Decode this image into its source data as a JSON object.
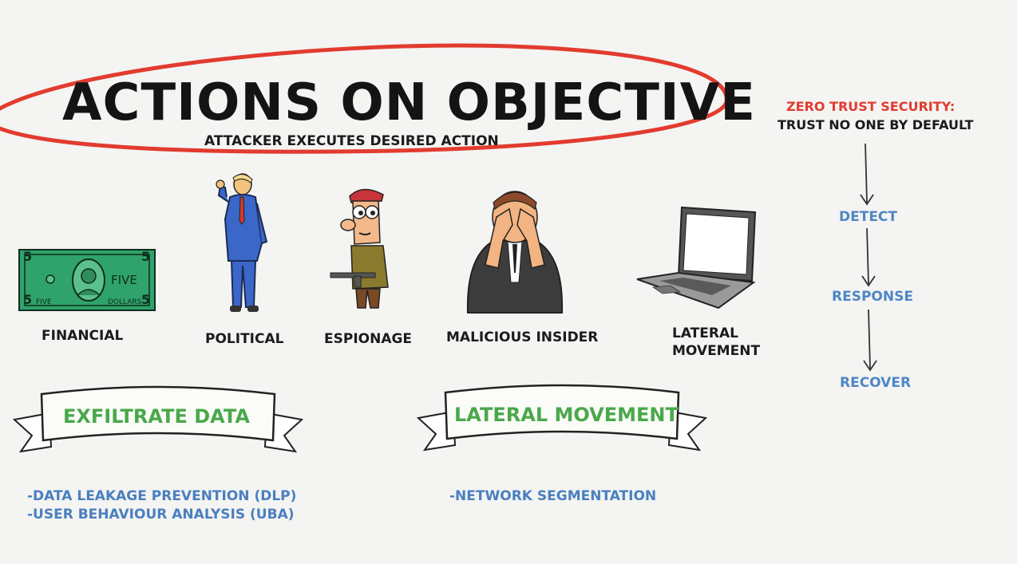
{
  "title": "ACTIONS ON OBJECTIVE",
  "subtitle": "ATTACKER EXECUTES DESIRED ACTION",
  "categories": [
    {
      "label": "FINANCIAL",
      "icon": "dollar-bill-icon"
    },
    {
      "label": "POLITICAL",
      "icon": "politician-icon"
    },
    {
      "label": "ESPIONAGE",
      "icon": "soldier-icon"
    },
    {
      "label": "MALICIOUS INSIDER",
      "icon": "distressed-man-icon"
    },
    {
      "label_line1": "LATERAL",
      "label_line2": "MOVEMENT",
      "icon": "laptop-icon"
    }
  ],
  "bill": {
    "big_number": "5",
    "word": "FIVE",
    "bottom_left": "FIVE",
    "bottom_right": "DOLLARS"
  },
  "zero_trust": {
    "title": "ZERO TRUST SECURITY:",
    "subtitle": "TRUST NO ONE BY DEFAULT",
    "steps": [
      "DETECT",
      "RESPONSE",
      "RECOVER"
    ]
  },
  "banners": [
    {
      "label": "EXFILTRATE DATA",
      "items": [
        "-DATA LEAKAGE PREVENTION (DLP)",
        "-USER BEHAVIOUR ANALYSIS (UBA)"
      ]
    },
    {
      "label": "LATERAL MOVEMENT",
      "items": [
        "-NETWORK SEGMENTATION"
      ]
    }
  ],
  "colors": {
    "accent_red": "#e23b2f",
    "banner_green": "#4aa84a",
    "bullet_blue": "#4a7fc0",
    "bill_green": "#2fa36b"
  }
}
